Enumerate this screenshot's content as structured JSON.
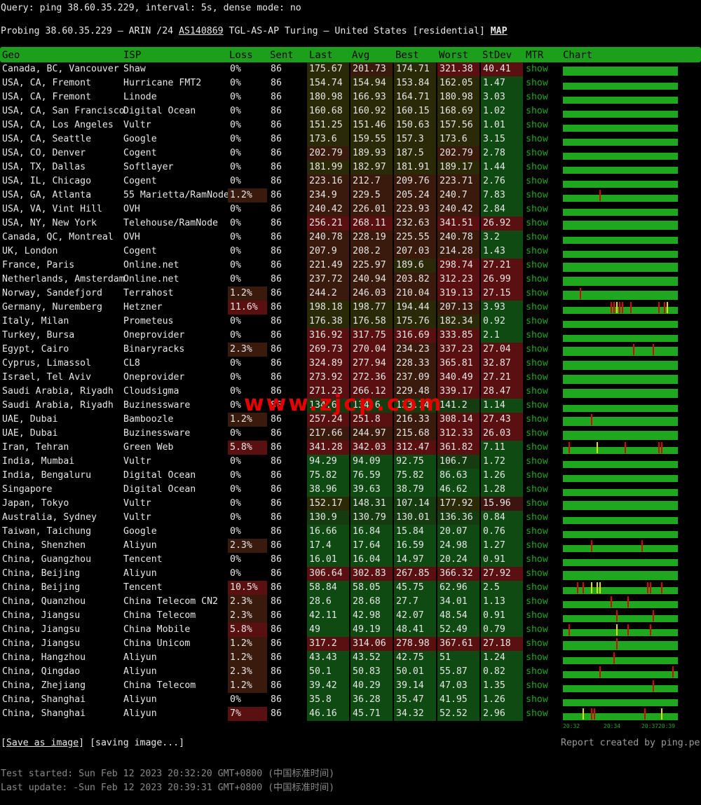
{
  "query_line": "Query: ping 38.60.35.229, interval: 5s, dense mode: no",
  "probe": {
    "prefix": "Probing 38.60.35.229 – ARIN /24 ",
    "asn": "AS140869",
    "middle": " TGL-AS-AP Turing – United States [residential] ",
    "map": "MAP"
  },
  "watermark": "www.zjcp.com",
  "headers": [
    "Geo",
    "ISP",
    "Loss",
    "Sent",
    "Last",
    "Avg",
    "Best",
    "Worst",
    "StDev",
    "MTR",
    "Chart"
  ],
  "show_label": "show",
  "rows": [
    [
      "Canada, BC, Vancouver",
      "Shaw",
      "0%",
      "86",
      "175.67",
      "201.73",
      "174.71",
      "321.38",
      "40.41"
    ],
    [
      "USA, CA, Fremont",
      "Hurricane FMT2",
      "0%",
      "86",
      "154.74",
      "154.94",
      "153.84",
      "162.05",
      "1.47"
    ],
    [
      "USA, CA, Fremont",
      "Linode",
      "0%",
      "86",
      "180.98",
      "166.93",
      "164.71",
      "180.98",
      "3.03"
    ],
    [
      "USA, CA, San Francisco",
      "Digital Ocean",
      "0%",
      "86",
      "160.68",
      "160.92",
      "160.15",
      "168.69",
      "1.02"
    ],
    [
      "USA, CA, Los Angeles",
      "Vultr",
      "0%",
      "86",
      "151.25",
      "151.46",
      "150.63",
      "157.56",
      "1.01"
    ],
    [
      "USA, CA, Seattle",
      "Google",
      "0%",
      "86",
      "173.6",
      "159.55",
      "157.3",
      "173.6",
      "3.15"
    ],
    [
      "USA, CO, Denver",
      "Cogent",
      "0%",
      "86",
      "202.79",
      "189.93",
      "187.5",
      "202.79",
      "2.78"
    ],
    [
      "USA, TX, Dallas",
      "Softlayer",
      "0%",
      "86",
      "181.99",
      "182.97",
      "181.91",
      "189.17",
      "1.44"
    ],
    [
      "USA, IL, Chicago",
      "Cogent",
      "0%",
      "86",
      "223.16",
      "212.7",
      "209.76",
      "223.71",
      "2.76"
    ],
    [
      "USA, GA, Atlanta",
      "55 Marietta/RamNode",
      "1.2%",
      "86",
      "234.9",
      "229.5",
      "205.24",
      "240.7",
      "7.83"
    ],
    [
      "USA, VA, Vint Hill",
      "OVH",
      "0%",
      "86",
      "240.42",
      "226.01",
      "223.93",
      "240.42",
      "2.84"
    ],
    [
      "USA, NY, New York",
      "Telehouse/RamNode",
      "0%",
      "86",
      "256.21",
      "268.11",
      "232.63",
      "341.51",
      "26.92"
    ],
    [
      "Canada, QC, Montreal",
      "OVH",
      "0%",
      "86",
      "240.78",
      "228.19",
      "225.55",
      "240.78",
      "3.2"
    ],
    [
      "UK, London",
      "Cogent",
      "0%",
      "86",
      "207.9",
      "208.2",
      "207.03",
      "214.28",
      "1.43"
    ],
    [
      "France, Paris",
      "Online.net",
      "0%",
      "86",
      "221.49",
      "225.97",
      "189.6",
      "298.74",
      "27.21"
    ],
    [
      "Netherlands, Amsterdam",
      "Online.net",
      "0%",
      "86",
      "237.72",
      "240.94",
      "203.82",
      "312.23",
      "26.99"
    ],
    [
      "Norway, Sandefjord",
      "Terrahost",
      "1.2%",
      "86",
      "244.2",
      "246.03",
      "210.04",
      "319.13",
      "27.15"
    ],
    [
      "Germany, Nuremberg",
      "Hetzner",
      "11.6%",
      "86",
      "198.18",
      "198.77",
      "194.44",
      "207.13",
      "3.93"
    ],
    [
      "Italy, Milan",
      "Prometeus",
      "0%",
      "86",
      "176.38",
      "176.58",
      "175.76",
      "182.34",
      "0.92"
    ],
    [
      "Turkey, Bursa",
      "Oneprovider",
      "0%",
      "86",
      "316.92",
      "317.75",
      "316.69",
      "333.85",
      "2.1"
    ],
    [
      "Egypt, Cairo",
      "Binaryracks",
      "2.3%",
      "86",
      "269.73",
      "270.04",
      "234.23",
      "337.23",
      "27.04"
    ],
    [
      "Cyprus, Limassol",
      "CL8",
      "0%",
      "86",
      "324.89",
      "277.94",
      "228.33",
      "365.81",
      "32.87"
    ],
    [
      "Israel, Tel Aviv",
      "Oneprovider",
      "0%",
      "86",
      "273.92",
      "272.36",
      "237.09",
      "340.49",
      "27.21"
    ],
    [
      "Saudi Arabia, Riyadh",
      "Cloudsigma",
      "0%",
      "86",
      "271.23",
      "266.12",
      "229.48",
      "339.17",
      "28.47"
    ],
    [
      "Saudi Arabia, Riyadh",
      "Buzinessware",
      "0%",
      "86",
      "134.6",
      "134.6",
      "133.74",
      "141.2",
      "1.14"
    ],
    [
      "UAE, Dubai",
      "Bamboozle",
      "1.2%",
      "86",
      "257.24",
      "251.8",
      "216.33",
      "308.14",
      "27.43"
    ],
    [
      "UAE, Dubai",
      "Buzinessware",
      "0%",
      "86",
      "217.66",
      "244.97",
      "215.68",
      "312.33",
      "26.03"
    ],
    [
      "Iran, Tehran",
      "Green Web",
      "5.8%",
      "86",
      "341.28",
      "342.03",
      "312.47",
      "361.82",
      "7.11"
    ],
    [
      "India, Mumbai",
      "Vultr",
      "0%",
      "86",
      "94.29",
      "94.09",
      "92.75",
      "106.7",
      "1.72"
    ],
    [
      "India, Bengaluru",
      "Digital Ocean",
      "0%",
      "86",
      "75.82",
      "76.59",
      "75.82",
      "86.63",
      "1.26"
    ],
    [
      "Singapore",
      "Digital Ocean",
      "0%",
      "86",
      "38.96",
      "39.63",
      "38.79",
      "46.62",
      "1.28"
    ],
    [
      "Japan, Tokyo",
      "Vultr",
      "0%",
      "86",
      "152.17",
      "148.31",
      "107.14",
      "177.92",
      "15.96"
    ],
    [
      "Australia, Sydney",
      "Vultr",
      "0%",
      "86",
      "130.9",
      "130.79",
      "130.01",
      "136.36",
      "0.84"
    ],
    [
      "Taiwan, Taichung",
      "Google",
      "0%",
      "86",
      "16.66",
      "16.84",
      "15.84",
      "20.07",
      "0.76"
    ],
    [
      "China, Shenzhen",
      "Aliyun",
      "2.3%",
      "86",
      "17.4",
      "17.64",
      "16.59",
      "24.98",
      "1.27"
    ],
    [
      "China, Guangzhou",
      "Tencent",
      "0%",
      "86",
      "16.01",
      "16.04",
      "14.97",
      "20.24",
      "0.91"
    ],
    [
      "China, Beijing",
      "Aliyun",
      "0%",
      "86",
      "306.64",
      "302.83",
      "267.85",
      "366.32",
      "27.92"
    ],
    [
      "China, Beijing",
      "Tencent",
      "10.5%",
      "86",
      "58.84",
      "58.05",
      "45.75",
      "62.96",
      "2.5"
    ],
    [
      "China, Quanzhou",
      "China Telecom CN2",
      "2.3%",
      "86",
      "28.6",
      "28.68",
      "27.7",
      "34.01",
      "1.13"
    ],
    [
      "China, Jiangsu",
      "China Telecom",
      "2.3%",
      "86",
      "42.11",
      "42.98",
      "42.07",
      "48.54",
      "0.91"
    ],
    [
      "China, Jiangsu",
      "China Mobile",
      "5.8%",
      "86",
      "49",
      "49.19",
      "48.41",
      "52.49",
      "0.79"
    ],
    [
      "China, Jiangsu",
      "China Unicom",
      "1.2%",
      "86",
      "317.2",
      "314.06",
      "278.98",
      "367.61",
      "27.18"
    ],
    [
      "China, Hangzhou",
      "Aliyun",
      "1.2%",
      "86",
      "43.43",
      "43.52",
      "42.75",
      "51",
      "1.24"
    ],
    [
      "China, Qingdao",
      "Aliyun",
      "2.3%",
      "86",
      "50.1",
      "50.83",
      "50.01",
      "55.87",
      "0.82"
    ],
    [
      "China, Zhejiang",
      "China Telecom",
      "1.2%",
      "86",
      "39.42",
      "40.29",
      "39.14",
      "47.03",
      "1.35"
    ],
    [
      "China, Shanghai",
      "Aliyun",
      "0%",
      "86",
      "35.8",
      "36.28",
      "35.47",
      "41.95",
      "1.26"
    ],
    [
      "China, Shanghai",
      "Aliyun",
      "7%",
      "86",
      "46.16",
      "45.71",
      "34.32",
      "52.52",
      "2.96"
    ]
  ],
  "chart_axis_ticks": [
    "20:32",
    "20:34",
    "20:37",
    "20:39"
  ],
  "footer": {
    "save": "Save as image",
    "saving": "[saving image...]",
    "credit": "Report created by ping.pe",
    "started": "Test started: Sun Feb 12 2023 20:32:20 GMT+0800 (中国标准时间)",
    "updated": "Last update: -Sun Feb 12 2023 20:39:31 GMT+0800 (中国标准时间)"
  },
  "colors": {
    "header_bg": "#1ca01c",
    "show": "#1fa81f",
    "loss_red": "#e60000"
  }
}
